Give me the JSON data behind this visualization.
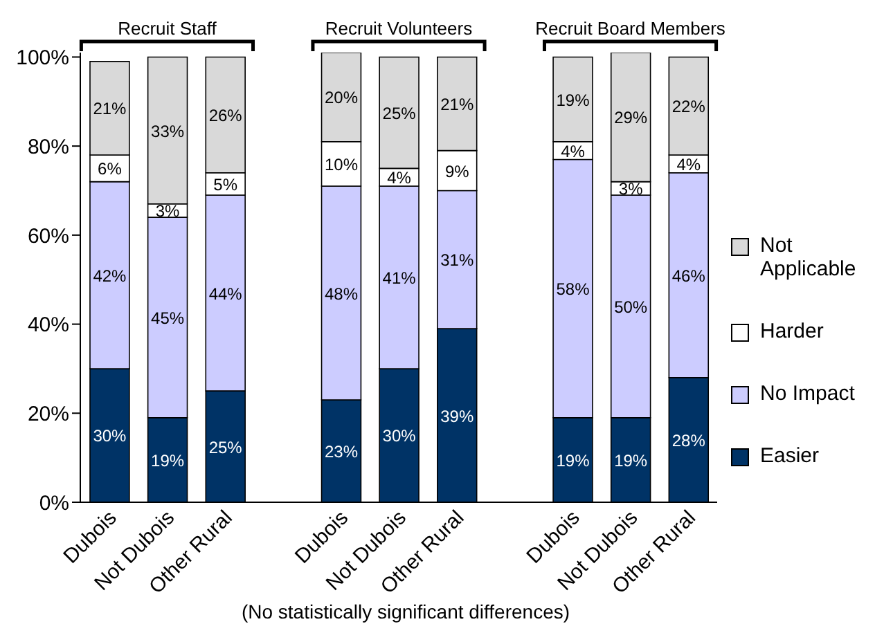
{
  "chart_data": {
    "type": "bar",
    "stacked": true,
    "categories": [
      "Dubois",
      "Not Dubois",
      "Other Rural",
      null,
      "Dubois",
      "Not Dubois",
      "Other Rural",
      null,
      "Dubois",
      "Not Dubois",
      "Other Rural"
    ],
    "series": [
      {
        "name": "Easier",
        "color": "#003366",
        "values": [
          30,
          19,
          25,
          null,
          23,
          30,
          39,
          null,
          19,
          19,
          28
        ],
        "value_labels": [
          "30%",
          "19%",
          "25%",
          null,
          "23%",
          "30%",
          "39%",
          null,
          "19%",
          "19%",
          "28%"
        ]
      },
      {
        "name": "No Impact",
        "color": "#ccccff",
        "values": [
          42,
          45,
          44,
          null,
          48,
          41,
          31,
          null,
          58,
          50,
          46
        ],
        "value_labels": [
          "42%",
          "45%",
          "44%",
          null,
          "48%",
          "41%",
          "31%",
          null,
          "58%",
          "50%",
          "46%"
        ]
      },
      {
        "name": "Harder",
        "color": "#ffffff",
        "values": [
          6,
          3,
          5,
          null,
          10,
          4,
          9,
          null,
          4,
          3,
          4
        ],
        "value_labels": [
          "6%",
          "3%",
          "5%",
          null,
          "10%",
          "4%",
          "9%",
          null,
          "4%",
          "3%",
          "4%"
        ]
      },
      {
        "name": "Not Applicable",
        "color": "#d9d9d9",
        "values": [
          21,
          33,
          26,
          null,
          20,
          25,
          21,
          null,
          19,
          29,
          22
        ],
        "value_labels": [
          "21%",
          "33%",
          "26%",
          null,
          "20%",
          "25%",
          "21%",
          null,
          "19%",
          "29%",
          "22%"
        ]
      }
    ],
    "ylim": [
      0,
      101
    ],
    "yticks": [
      {
        "value": 0,
        "label": "0%"
      },
      {
        "value": 20,
        "label": "20%"
      },
      {
        "value": 40,
        "label": "40%"
      },
      {
        "value": 60,
        "label": "60%"
      },
      {
        "value": 80,
        "label": "80%"
      },
      {
        "value": 100,
        "label": "100%"
      }
    ],
    "grid": false,
    "legend": "right",
    "annotations": [
      "Recruit Staff",
      "Recruit Volunteers",
      "Recruit Board Members",
      "(No statistically significant differences)"
    ]
  }
}
